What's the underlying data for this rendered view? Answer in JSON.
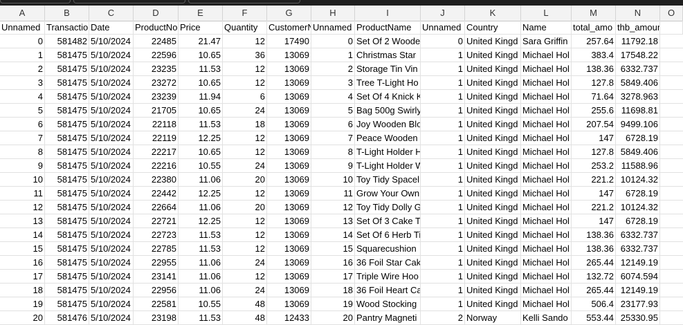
{
  "columns": [
    "A",
    "B",
    "C",
    "D",
    "E",
    "F",
    "G",
    "H",
    "I",
    "J",
    "K",
    "L",
    "M",
    "N",
    "O"
  ],
  "headers": [
    "Unnamed",
    "Transactio",
    "Date",
    "ProductNo",
    "Price",
    "Quantity",
    "CustomerN",
    "Unnamed",
    "ProductName",
    "Unnamed",
    "Country",
    "Name",
    "total_amo",
    "thb_amount",
    ""
  ],
  "rows": [
    [
      "0",
      "581482",
      "5/10/2024",
      "22485",
      "21.47",
      "12",
      "17490",
      "0",
      "Set Of 2 Woode",
      "0",
      "United Kingd",
      "Sara Griffin",
      "257.64",
      "11792.18"
    ],
    [
      "1",
      "581475",
      "5/10/2024",
      "22596",
      "10.65",
      "36",
      "13069",
      "1",
      "Christmas Star",
      "1",
      "United Kingd",
      "Michael Hol",
      "383.4",
      "17548.22"
    ],
    [
      "2",
      "581475",
      "5/10/2024",
      "23235",
      "11.53",
      "12",
      "13069",
      "2",
      "Storage Tin Vin",
      "1",
      "United Kingd",
      "Michael Hol",
      "138.36",
      "6332.737"
    ],
    [
      "3",
      "581475",
      "5/10/2024",
      "23272",
      "10.65",
      "12",
      "13069",
      "3",
      "Tree T-Light Ho",
      "1",
      "United Kingd",
      "Michael Hol",
      "127.8",
      "5849.406"
    ],
    [
      "4",
      "581475",
      "5/10/2024",
      "23239",
      "11.94",
      "6",
      "13069",
      "4",
      "Set Of 4 Knick K",
      "1",
      "United Kingd",
      "Michael Hol",
      "71.64",
      "3278.963"
    ],
    [
      "5",
      "581475",
      "5/10/2024",
      "21705",
      "10.65",
      "24",
      "13069",
      "5",
      "Bag 500g Swirly",
      "1",
      "United Kingd",
      "Michael Hol",
      "255.6",
      "11698.81"
    ],
    [
      "6",
      "581475",
      "5/10/2024",
      "22118",
      "11.53",
      "18",
      "13069",
      "6",
      "Joy Wooden Blo",
      "1",
      "United Kingd",
      "Michael Hol",
      "207.54",
      "9499.106"
    ],
    [
      "7",
      "581475",
      "5/10/2024",
      "22119",
      "12.25",
      "12",
      "13069",
      "7",
      "Peace Wooden",
      "1",
      "United Kingd",
      "Michael Hol",
      "147",
      "6728.19"
    ],
    [
      "8",
      "581475",
      "5/10/2024",
      "22217",
      "10.65",
      "12",
      "13069",
      "8",
      "T-Light Holder H",
      "1",
      "United Kingd",
      "Michael Hol",
      "127.8",
      "5849.406"
    ],
    [
      "9",
      "581475",
      "5/10/2024",
      "22216",
      "10.55",
      "24",
      "13069",
      "9",
      "T-Light Holder W",
      "1",
      "United Kingd",
      "Michael Hol",
      "253.2",
      "11588.96"
    ],
    [
      "10",
      "581475",
      "5/10/2024",
      "22380",
      "11.06",
      "20",
      "13069",
      "10",
      "Toy Tidy Spacel",
      "1",
      "United Kingd",
      "Michael Hol",
      "221.2",
      "10124.32"
    ],
    [
      "11",
      "581475",
      "5/10/2024",
      "22442",
      "12.25",
      "12",
      "13069",
      "11",
      "Grow Your Own",
      "1",
      "United Kingd",
      "Michael Hol",
      "147",
      "6728.19"
    ],
    [
      "12",
      "581475",
      "5/10/2024",
      "22664",
      "11.06",
      "20",
      "13069",
      "12",
      "Toy Tidy Dolly G",
      "1",
      "United Kingd",
      "Michael Hol",
      "221.2",
      "10124.32"
    ],
    [
      "13",
      "581475",
      "5/10/2024",
      "22721",
      "12.25",
      "12",
      "13069",
      "13",
      "Set Of 3 Cake Ti",
      "1",
      "United Kingd",
      "Michael Hol",
      "147",
      "6728.19"
    ],
    [
      "14",
      "581475",
      "5/10/2024",
      "22723",
      "11.53",
      "12",
      "13069",
      "14",
      "Set Of 6 Herb Ti",
      "1",
      "United Kingd",
      "Michael Hol",
      "138.36",
      "6332.737"
    ],
    [
      "15",
      "581475",
      "5/10/2024",
      "22785",
      "11.53",
      "12",
      "13069",
      "15",
      "Squarecushion",
      "1",
      "United Kingd",
      "Michael Hol",
      "138.36",
      "6332.737"
    ],
    [
      "16",
      "581475",
      "5/10/2024",
      "22955",
      "11.06",
      "24",
      "13069",
      "16",
      "36 Foil Star Cak",
      "1",
      "United Kingd",
      "Michael Hol",
      "265.44",
      "12149.19"
    ],
    [
      "17",
      "581475",
      "5/10/2024",
      "23141",
      "11.06",
      "12",
      "13069",
      "17",
      "Triple Wire Hoo",
      "1",
      "United Kingd",
      "Michael Hol",
      "132.72",
      "6074.594"
    ],
    [
      "18",
      "581475",
      "5/10/2024",
      "22956",
      "11.06",
      "24",
      "13069",
      "18",
      "36 Foil Heart Ca",
      "1",
      "United Kingd",
      "Michael Hol",
      "265.44",
      "12149.19"
    ],
    [
      "19",
      "581475",
      "5/10/2024",
      "22581",
      "10.55",
      "48",
      "13069",
      "19",
      "Wood Stocking",
      "1",
      "United Kingd",
      "Michael Hol",
      "506.4",
      "23177.93"
    ],
    [
      "20",
      "581476",
      "5/10/2024",
      "23198",
      "11.53",
      "48",
      "12433",
      "20",
      "Pantry Magneti",
      "2",
      "Norway",
      "Kelli Sando",
      "553.44",
      "25330.95"
    ]
  ]
}
